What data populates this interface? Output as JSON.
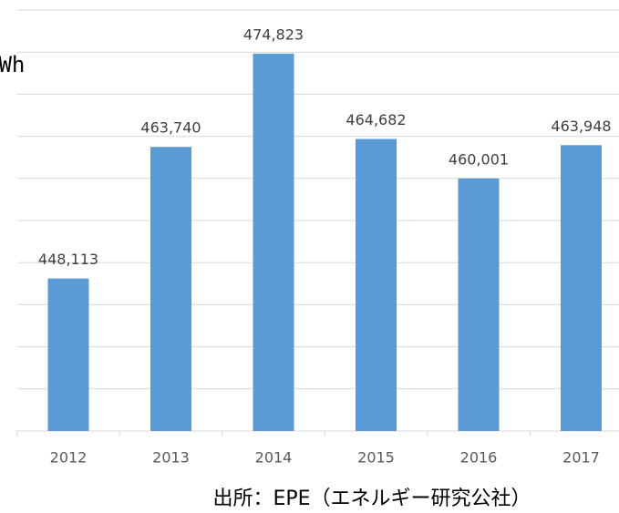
{
  "chart_data": {
    "type": "bar",
    "unit_label": "GWh",
    "source": "出所：EPE（エネルギー研究公社）",
    "categories": [
      "2012",
      "2013",
      "2014",
      "2015",
      "2016",
      "2017"
    ],
    "values": [
      448113,
      463740,
      474823,
      464682,
      460001,
      463948
    ],
    "value_labels": [
      "448,113",
      "463,740",
      "474,823",
      "464,682",
      "460,001",
      "463,948"
    ],
    "color": "#5b9bd5",
    "ylim": [
      430000,
      480000
    ],
    "yticks": [
      430000,
      435000,
      440000,
      445000,
      450000,
      455000,
      460000,
      465000,
      470000,
      475000,
      480000
    ],
    "grid": true
  }
}
